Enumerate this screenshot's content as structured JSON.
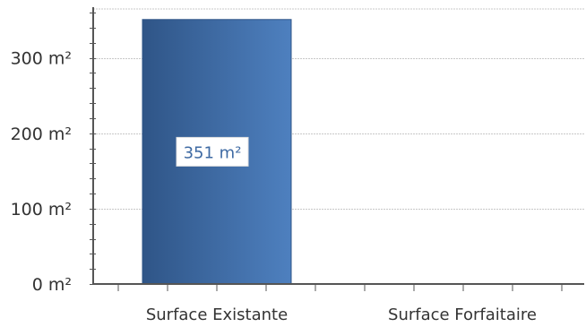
{
  "chart_data": {
    "type": "bar",
    "categories": [
      "Surface Existante",
      "Surface Forfaitaire"
    ],
    "values": [
      351,
      0
    ],
    "data_labels": [
      "351 m²",
      ""
    ],
    "y_ticks": [
      0,
      100,
      200,
      300
    ],
    "y_tick_labels": [
      "0 m²",
      "100 m²",
      "200 m²",
      "300 m²"
    ],
    "ylim": [
      0,
      365
    ],
    "grid": true,
    "legend": "none",
    "bar_color_dark": "#2f5587",
    "bar_color_light": "#4e80bf",
    "grid_color": "#c8c8c8",
    "axis_color": "#555555"
  }
}
